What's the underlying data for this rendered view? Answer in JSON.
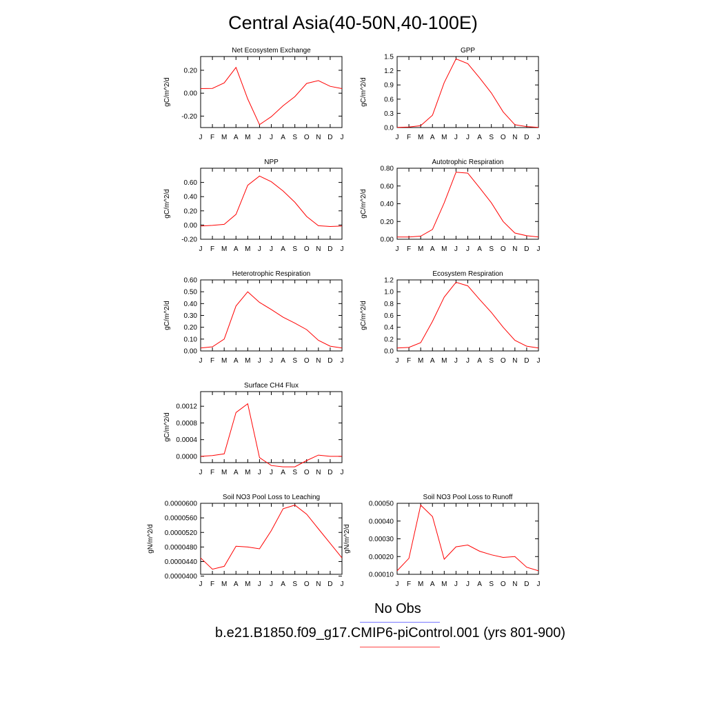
{
  "title": "Central Asia(40-50N,40-100E)",
  "legend": {
    "obs_label": "No Obs",
    "obs_color": "#7777ff",
    "case_label": "b.e21.B1850.f09_g17.CMIP6-piControl.001 (yrs 801-900)",
    "case_color": "#ff4444"
  },
  "line_color": "#ff0000",
  "chart_data": [
    {
      "type": "line",
      "title": "Net Ecosystem Exchange",
      "ylabel": "gC/m^2/d",
      "categories": [
        "J",
        "F",
        "M",
        "A",
        "M",
        "J",
        "J",
        "A",
        "S",
        "O",
        "N",
        "D",
        "J"
      ],
      "ylim": [
        -0.3,
        0.32
      ],
      "yticks": [
        -0.2,
        0.0,
        0.2
      ],
      "ytick_labels": [
        "-0.20",
        "0.00",
        "0.20"
      ],
      "values": [
        0.04,
        0.042,
        0.09,
        0.225,
        -0.05,
        -0.275,
        -0.205,
        -0.11,
        -0.03,
        0.085,
        0.11,
        0.06,
        0.04
      ]
    },
    {
      "type": "line",
      "title": "GPP",
      "ylabel": "gC/m^2/d",
      "categories": [
        "J",
        "F",
        "M",
        "A",
        "M",
        "J",
        "J",
        "A",
        "S",
        "O",
        "N",
        "D",
        "J"
      ],
      "ylim": [
        0,
        1.5
      ],
      "yticks": [
        0.0,
        0.3,
        0.6,
        0.9,
        1.2,
        1.5
      ],
      "ytick_labels": [
        "0.0",
        "0.3",
        "0.6",
        "0.9",
        "1.2",
        "1.5"
      ],
      "values": [
        0.005,
        0.01,
        0.04,
        0.26,
        0.95,
        1.45,
        1.35,
        1.05,
        0.73,
        0.33,
        0.06,
        0.02,
        0.005
      ]
    },
    {
      "type": "line",
      "title": "NPP",
      "ylabel": "gC/m^2/d",
      "categories": [
        "J",
        "F",
        "M",
        "A",
        "M",
        "J",
        "J",
        "A",
        "S",
        "O",
        "N",
        "D",
        "J"
      ],
      "ylim": [
        -0.2,
        0.8
      ],
      "yticks": [
        -0.2,
        0.0,
        0.2,
        0.4,
        0.6
      ],
      "ytick_labels": [
        "-0.20",
        "0.00",
        "0.20",
        "0.40",
        "0.60"
      ],
      "values": [
        -0.015,
        -0.005,
        0.01,
        0.15,
        0.56,
        0.69,
        0.61,
        0.48,
        0.32,
        0.12,
        -0.01,
        -0.02,
        -0.015
      ]
    },
    {
      "type": "line",
      "title": "Autotrophic Respiration",
      "ylabel": "gC/m^2/d",
      "categories": [
        "J",
        "F",
        "M",
        "A",
        "M",
        "J",
        "J",
        "A",
        "S",
        "O",
        "N",
        "D",
        "J"
      ],
      "ylim": [
        0,
        0.8
      ],
      "yticks": [
        0.0,
        0.2,
        0.4,
        0.6,
        0.8
      ],
      "ytick_labels": [
        "0.00",
        "0.20",
        "0.40",
        "0.60",
        "0.80"
      ],
      "values": [
        0.025,
        0.025,
        0.035,
        0.11,
        0.41,
        0.755,
        0.745,
        0.58,
        0.41,
        0.2,
        0.07,
        0.04,
        0.025
      ]
    },
    {
      "type": "line",
      "title": "Heterotrophic Respiration",
      "ylabel": "gC/m^2/d",
      "categories": [
        "J",
        "F",
        "M",
        "A",
        "M",
        "J",
        "J",
        "A",
        "S",
        "O",
        "N",
        "D",
        "J"
      ],
      "ylim": [
        0,
        0.6
      ],
      "yticks": [
        0.0,
        0.1,
        0.2,
        0.3,
        0.4,
        0.5,
        0.6
      ],
      "ytick_labels": [
        "0.00",
        "0.10",
        "0.20",
        "0.30",
        "0.40",
        "0.50",
        "0.60"
      ],
      "values": [
        0.025,
        0.035,
        0.1,
        0.38,
        0.5,
        0.41,
        0.35,
        0.285,
        0.235,
        0.18,
        0.09,
        0.04,
        0.025
      ]
    },
    {
      "type": "line",
      "title": "Ecosystem Respiration",
      "ylabel": "gC/m^2/d",
      "categories": [
        "J",
        "F",
        "M",
        "A",
        "M",
        "J",
        "J",
        "A",
        "S",
        "O",
        "N",
        "D",
        "J"
      ],
      "ylim": [
        0,
        1.2
      ],
      "yticks": [
        0.0,
        0.2,
        0.4,
        0.6,
        0.8,
        1.0,
        1.2
      ],
      "ytick_labels": [
        "0.0",
        "0.2",
        "0.4",
        "0.6",
        "0.8",
        "1.0",
        "1.2"
      ],
      "values": [
        0.05,
        0.06,
        0.14,
        0.5,
        0.91,
        1.16,
        1.1,
        0.87,
        0.65,
        0.4,
        0.18,
        0.08,
        0.05
      ]
    },
    {
      "type": "line",
      "title": "Surface CH4 Flux",
      "ylabel": "gC/m^2/d",
      "categories": [
        "J",
        "F",
        "M",
        "A",
        "M",
        "J",
        "J",
        "A",
        "S",
        "O",
        "N",
        "D",
        "J"
      ],
      "ylim": [
        -0.00015,
        0.00155
      ],
      "yticks": [
        0.0,
        0.0004,
        0.0008,
        0.0012
      ],
      "ytick_labels": [
        "0.0000",
        "0.0004",
        "0.0008",
        "0.0012"
      ],
      "values": [
        0.0,
        2e-05,
        6e-05,
        0.00105,
        0.00126,
        -3e-05,
        -0.00022,
        -0.00025,
        -0.00025,
        -0.0001,
        3e-05,
        0.0,
        0.0
      ]
    },
    {
      "type": "line",
      "title": "Soil NO3 Pool Loss to Leaching",
      "ylabel": "gN/m^2/d",
      "categories": [
        "J",
        "F",
        "M",
        "A",
        "M",
        "J",
        "J",
        "A",
        "S",
        "O",
        "N",
        "D",
        "J"
      ],
      "ylim": [
        4.05e-05,
        6e-05
      ],
      "yticks": [
        4e-05,
        4.4e-05,
        4.8e-05,
        5.2e-05,
        5.6e-05,
        6e-05
      ],
      "ytick_labels": [
        "0.0000400",
        "0.0000440",
        "0.0000480",
        "0.0000520",
        "0.0000560",
        "0.0000600"
      ],
      "values": [
        4.5e-05,
        4.19e-05,
        4.27e-05,
        4.82e-05,
        4.8e-05,
        4.75e-05,
        5.25e-05,
        5.85e-05,
        5.95e-05,
        5.7e-05,
        5.3e-05,
        4.9e-05,
        4.5e-05
      ]
    },
    {
      "type": "line",
      "title": "Soil NO3 Pool Loss to Runoff",
      "ylabel": "gN/m^2/d",
      "categories": [
        "J",
        "F",
        "M",
        "A",
        "M",
        "J",
        "J",
        "A",
        "S",
        "O",
        "N",
        "D",
        "J"
      ],
      "ylim": [
        0.0001,
        0.0005
      ],
      "yticks": [
        0.0001,
        0.0002,
        0.0003,
        0.0004,
        0.0005
      ],
      "ytick_labels": [
        "0.00010",
        "0.00020",
        "0.00030",
        "0.00040",
        "0.00050"
      ],
      "values": [
        0.00012,
        0.00019,
        0.00049,
        0.000425,
        0.000185,
        0.000255,
        0.000265,
        0.00023,
        0.00021,
        0.000195,
        0.0002,
        0.00014,
        0.00012
      ]
    }
  ]
}
